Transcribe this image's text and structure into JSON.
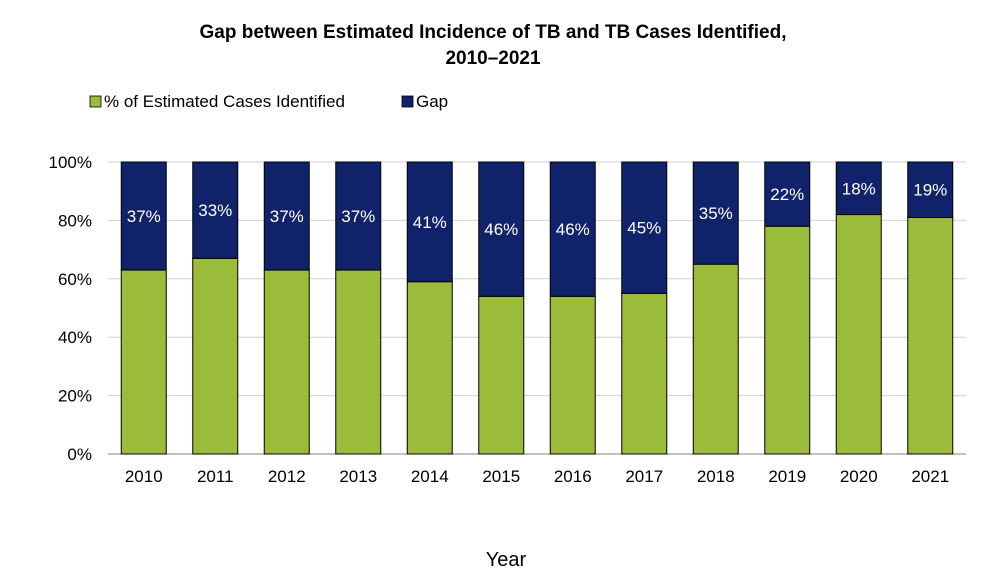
{
  "chart_data": {
    "type": "bar",
    "stacked": true,
    "title_line1": "Gap between Estimated Incidence of TB and TB Cases Identified,",
    "title_line2": "2010–2021",
    "xlabel": "Year",
    "ylabel": "",
    "ylim": [
      0,
      100
    ],
    "y_ticks": [
      "0%",
      "20%",
      "40%",
      "60%",
      "80%",
      "100%"
    ],
    "y_tick_values": [
      0,
      20,
      40,
      60,
      80,
      100
    ],
    "grid": true,
    "legend_position": "top-left",
    "categories": [
      "2010",
      "2011",
      "2012",
      "2013",
      "2014",
      "2015",
      "2016",
      "2017",
      "2018",
      "2019",
      "2020",
      "2021"
    ],
    "series": [
      {
        "name": "% of Estimated Cases Identified",
        "color": "#9bbb3b",
        "values": [
          63,
          67,
          63,
          63,
          59,
          54,
          54,
          55,
          65,
          78,
          82,
          81
        ]
      },
      {
        "name": "Gap",
        "color": "#10236a",
        "values": [
          37,
          33,
          37,
          37,
          41,
          46,
          46,
          45,
          35,
          22,
          18,
          19
        ],
        "data_labels": [
          "37%",
          "33%",
          "37%",
          "37%",
          "41%",
          "46%",
          "46%",
          "45%",
          "35%",
          "22%",
          "18%",
          "19%"
        ]
      }
    ]
  }
}
